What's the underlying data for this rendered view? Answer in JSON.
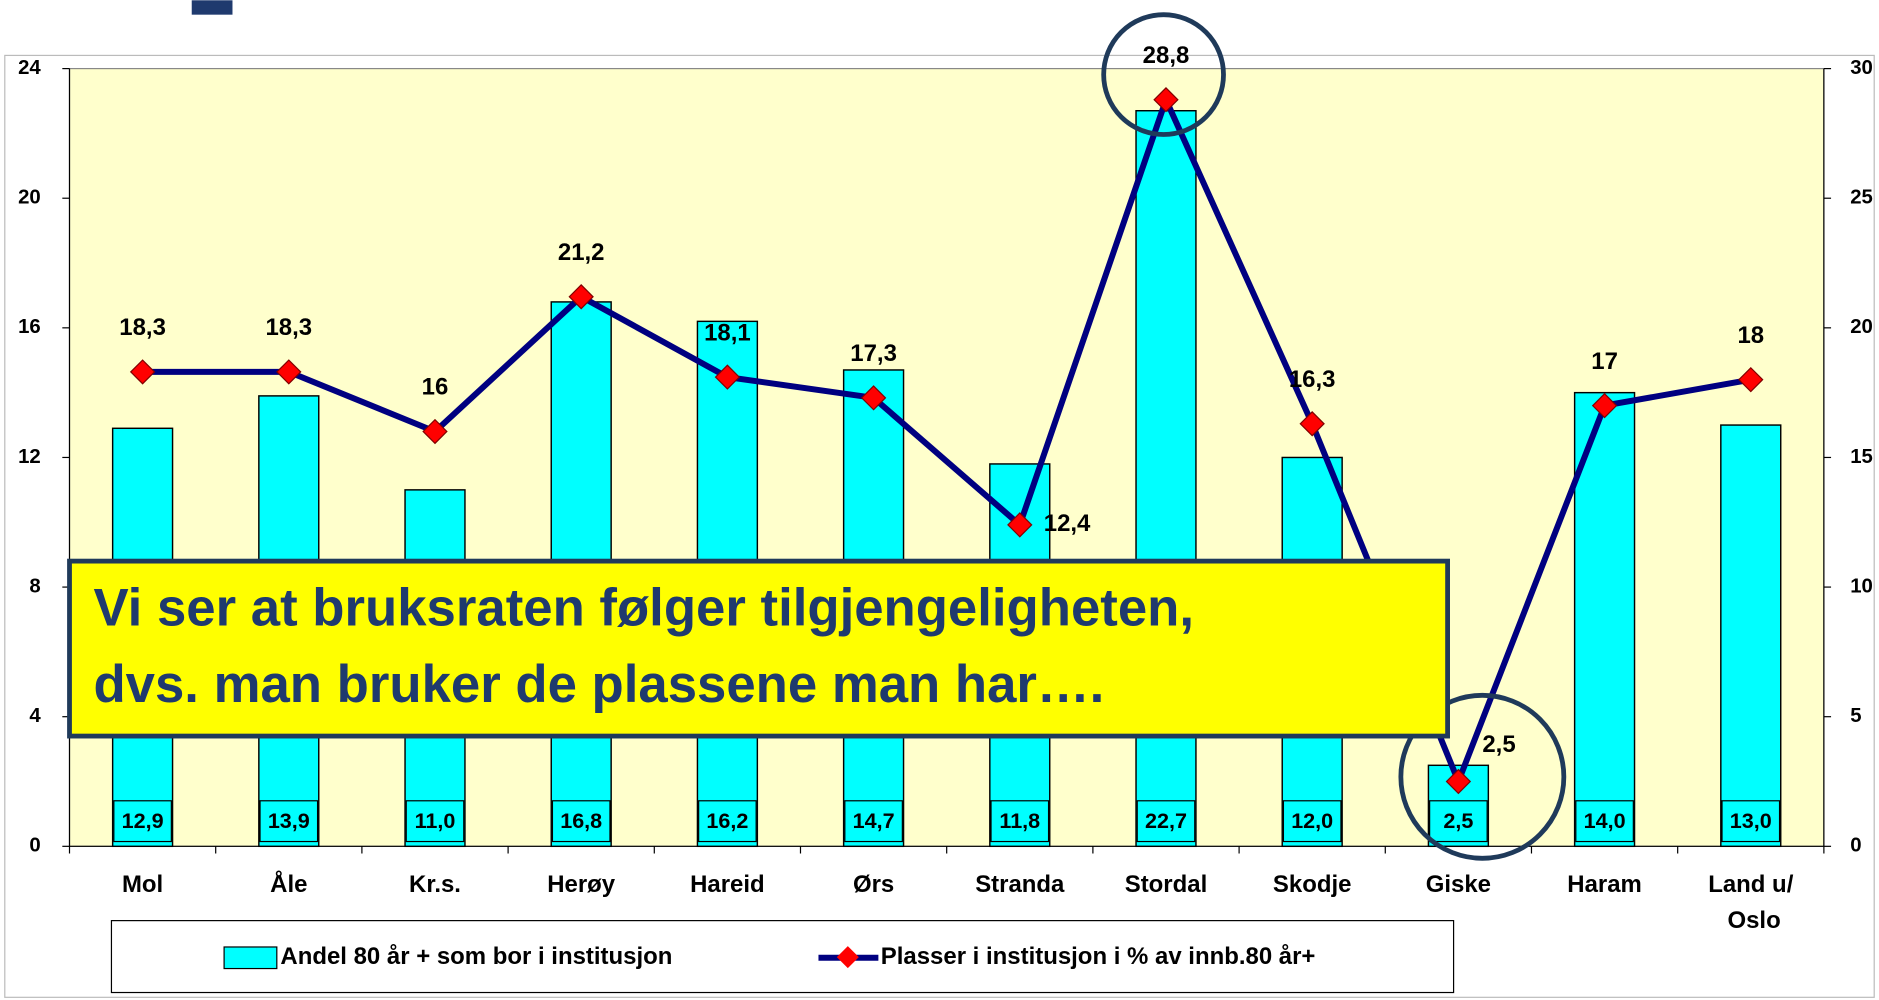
{
  "chart_data": {
    "type": "bar+line",
    "categories": [
      "Mol",
      "Åle",
      "Kr.s.",
      "Herøy",
      "Hareid",
      "Ørs",
      "Stranda",
      "Stordal",
      "Skodje",
      "Giske",
      "Haram",
      "Land u/ Oslo"
    ],
    "series": [
      {
        "name": "Andel 80 år + som bor i institusjon",
        "type": "bar",
        "color": "#00ffff",
        "axis": "y",
        "values": [
          12.9,
          13.9,
          11.0,
          16.8,
          16.2,
          14.7,
          11.8,
          22.7,
          12.0,
          2.5,
          14.0,
          13.0
        ],
        "value_labels": [
          "12,9",
          "13,9",
          "11,0",
          "16,8",
          "16,2",
          "14,7",
          "11,8",
          "22,7",
          "12,0",
          "2,5",
          "14,0",
          "13,0"
        ]
      },
      {
        "name": "Plasser i institusjon i % av innb.80 år+",
        "type": "line",
        "color": "#000080",
        "marker_color": "#ff0000",
        "axis": "y2",
        "values": [
          18.3,
          18.3,
          16,
          21.2,
          18.1,
          17.3,
          12.4,
          28.8,
          16.3,
          2.5,
          17,
          18
        ],
        "value_labels": [
          "18,3",
          "18,3",
          "16",
          "21,2",
          "18,1",
          "17,3",
          "12,4",
          "28,8",
          "16,3",
          "2,5",
          "17",
          "18"
        ]
      }
    ],
    "ylim": [
      0,
      24
    ],
    "yticks": [
      0,
      4,
      8,
      12,
      16,
      20,
      24
    ],
    "y2lim": [
      0,
      30
    ],
    "y2ticks": [
      0,
      5,
      10,
      15,
      20,
      25,
      30
    ],
    "legend": "bottom",
    "annotation": [
      "Vi ser at bruksraten følger tilgjengeligheten,",
      "dvs. man bruker de plassene man har…."
    ]
  }
}
